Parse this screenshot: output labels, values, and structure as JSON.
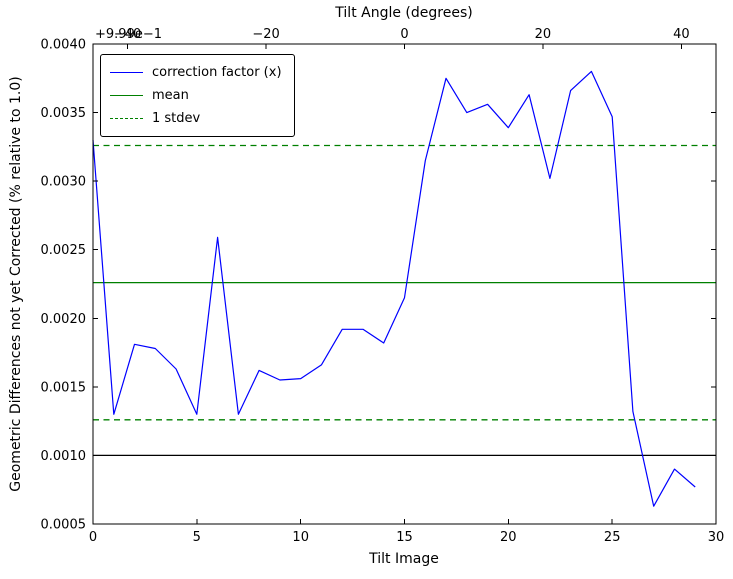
{
  "figure": {
    "background": "#ffffff"
  },
  "legend": {
    "position": "upper left",
    "items": [
      {
        "label": "correction factor (x)",
        "color": "#0000ff",
        "style": "solid"
      },
      {
        "label": "mean",
        "color": "#008000",
        "style": "solid"
      },
      {
        "label": "1 stdev",
        "color": "#008000",
        "style": "dashed"
      }
    ]
  },
  "chart_data": {
    "type": "line",
    "title": "Tilt Angle (degrees)",
    "xlabel": "Tilt Image",
    "ylabel": "Geometric Differences not yet Corrected (% relative to 1.0)",
    "grid": false,
    "legend_position": "upper left",
    "xlim": [
      0,
      30
    ],
    "ylim": [
      0.0005,
      0.004
    ],
    "xticks": [
      0,
      5,
      10,
      15,
      20,
      25,
      30
    ],
    "xtick_labels": [
      "0",
      "5",
      "10",
      "15",
      "20",
      "25",
      "30"
    ],
    "yticks": [
      0.0005,
      0.001,
      0.0015,
      0.002,
      0.0025,
      0.003,
      0.0035,
      0.004
    ],
    "ytick_labels": [
      "0.0005",
      "0.0010",
      "0.0015",
      "0.0020",
      "0.0025",
      "0.0030",
      "0.0035",
      "0.0040"
    ],
    "top_axis": {
      "label": "Tilt Angle (degrees)",
      "lim": [
        -45,
        45
      ],
      "ticks": [
        -40,
        -20,
        0,
        20,
        40
      ],
      "tick_labels": [
        "−40",
        "−20",
        "0",
        "20",
        "40"
      ],
      "offset_text": "+9.99e−1"
    },
    "x": [
      0,
      1,
      2,
      3,
      4,
      5,
      6,
      7,
      8,
      9,
      10,
      11,
      12,
      13,
      14,
      15,
      16,
      17,
      18,
      19,
      20,
      21,
      22,
      23,
      24,
      25,
      26,
      27,
      28,
      29
    ],
    "series": [
      {
        "name": "correction factor (x)",
        "color": "#0000ff",
        "style": "solid",
        "values": [
          0.0033,
          0.0013,
          0.00181,
          0.00178,
          0.00163,
          0.0013,
          0.00259,
          0.0013,
          0.00162,
          0.00155,
          0.00156,
          0.00166,
          0.00192,
          0.00192,
          0.00182,
          0.00215,
          0.00315,
          0.00375,
          0.0035,
          0.00356,
          0.00339,
          0.00363,
          0.00302,
          0.00366,
          0.0038,
          0.00347,
          0.00132,
          0.00063,
          0.0009,
          0.00077
        ]
      }
    ],
    "reference_lines": [
      {
        "name": "mean-line",
        "label": "mean",
        "value": 0.00226,
        "color": "#008000",
        "style": "solid"
      },
      {
        "name": "stdev-upper-line",
        "label": "1 stdev",
        "value": 0.00326,
        "color": "#008000",
        "style": "dashed"
      },
      {
        "name": "stdev-lower-line",
        "label": "1 stdev",
        "value": 0.00126,
        "color": "#008000",
        "style": "dashed"
      },
      {
        "name": "baseline-line",
        "label": "",
        "value": 0.001,
        "color": "#000000",
        "style": "solid"
      }
    ]
  }
}
